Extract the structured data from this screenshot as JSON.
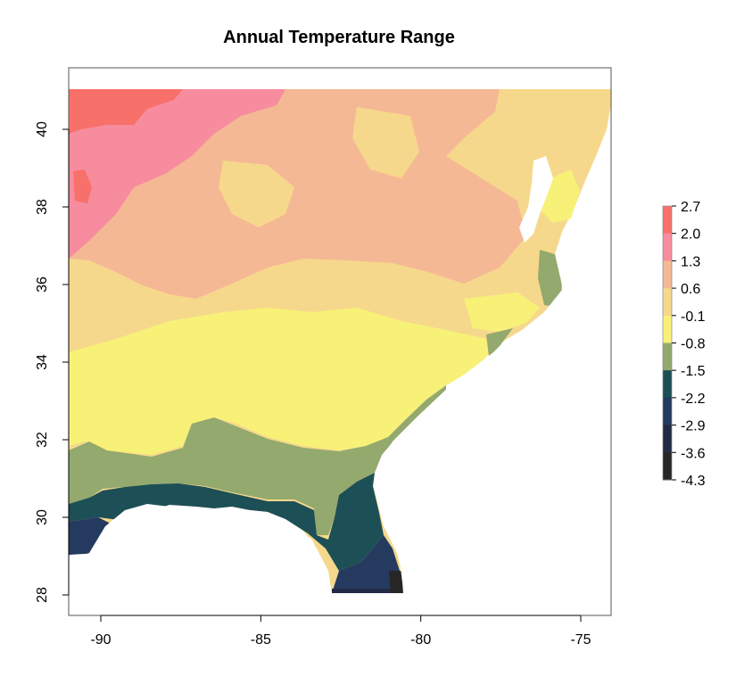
{
  "title": "Annual Temperature Range",
  "x_ticks": [
    "-90",
    "-85",
    "-80",
    "-75"
  ],
  "y_ticks": [
    "28",
    "30",
    "32",
    "34",
    "36",
    "38",
    "40"
  ],
  "legend": {
    "labels": [
      "2.7",
      "2.0",
      "1.3",
      "0.6",
      "-0.1",
      "-0.8",
      "-1.5",
      "-2.2",
      "-2.9",
      "-3.6",
      "-4.3"
    ],
    "colors": [
      "#f8706a",
      "#f68c9e",
      "#f5b895",
      "#f6d88c",
      "#f8f178",
      "#94a96e",
      "#1d4f56",
      "#243a5e",
      "#232a45",
      "#262626"
    ]
  },
  "chart_data": {
    "type": "heatmap",
    "title": "Annual Temperature Range",
    "xlim": [
      -91,
      -74
    ],
    "ylim": [
      27.6,
      41
    ],
    "x_ticks": [
      -90,
      -85,
      -80,
      -75
    ],
    "y_ticks": [
      28,
      30,
      32,
      34,
      36,
      38,
      40
    ],
    "scale_breaks": [
      2.7,
      2.0,
      1.3,
      0.6,
      -0.1,
      -0.8,
      -1.5,
      -2.2,
      -2.9,
      -3.6,
      -4.3
    ],
    "colors": [
      "#f8706a",
      "#f68c9e",
      "#f5b895",
      "#f6d88c",
      "#f8f178",
      "#94a96e",
      "#1d4f56",
      "#243a5e",
      "#232a45",
      "#262626"
    ]
  }
}
